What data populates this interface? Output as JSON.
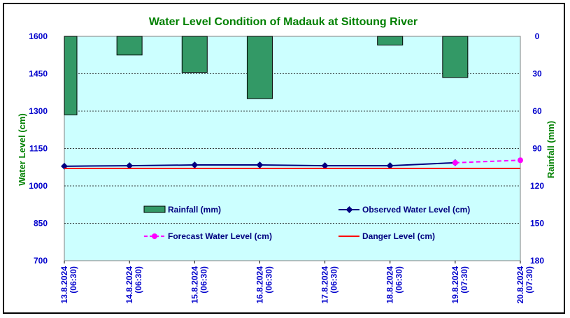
{
  "chart_data": {
    "type": "bar+line",
    "title": "Water Level Condition of Madauk at Sittoung River",
    "ylabel": "Water Level (cm)",
    "y2label": "Rainfall (mm)",
    "ylim": [
      700,
      1600
    ],
    "yticks": [
      700,
      850,
      1000,
      1150,
      1300,
      1450,
      1600
    ],
    "y2lim": [
      0,
      180
    ],
    "y2_inverted": true,
    "y2ticks": [
      0,
      30,
      60,
      90,
      120,
      150,
      180
    ],
    "grid": true,
    "categories": [
      "13.8.2024 (06:30)",
      "14.8.2024 (06:30)",
      "15.8.2024 (06:30)",
      "16.8.2024 (06:30)",
      "17.8.2024 (06:30)",
      "18.8.2024 (06:30)",
      "19.8.2024 (07:30)",
      "20.8.2024 (07:30)"
    ],
    "series": [
      {
        "name": "Rainfall (mm)",
        "type": "bar",
        "axis": "y2",
        "color": "#339966",
        "values": [
          63,
          15,
          29,
          50,
          null,
          7,
          33,
          null
        ]
      },
      {
        "name": "Observed Water Level (cm)",
        "type": "line",
        "axis": "y",
        "color": "#000080",
        "values": [
          1079,
          1081,
          1084,
          1084,
          1081,
          1081,
          1093,
          null
        ]
      },
      {
        "name": "Forecast Water Level (cm)",
        "type": "line",
        "axis": "y",
        "color": "#FF00FF",
        "dashed": true,
        "values": [
          null,
          null,
          null,
          null,
          null,
          null,
          1093,
          1103
        ]
      },
      {
        "name": "Danger Level (cm)",
        "type": "line",
        "axis": "y",
        "color": "#FF0000",
        "values": [
          1070,
          1070,
          1070,
          1070,
          1070,
          1070,
          1070,
          1070
        ]
      }
    ],
    "legend": {
      "placement": "inside-bottom",
      "order": [
        "Rainfall (mm)",
        "Observed Water Level (cm)",
        "Forecast Water Level (cm)",
        "Danger Level (cm)"
      ]
    },
    "colors": {
      "plot_background": "#CCFFFF",
      "title": "#008000",
      "left_axis_labels": "#0000CC",
      "right_axis_labels": "#0000CC",
      "axis_titles": "#008000",
      "category_labels": "#0000CC",
      "legend_text": "#000080"
    }
  }
}
